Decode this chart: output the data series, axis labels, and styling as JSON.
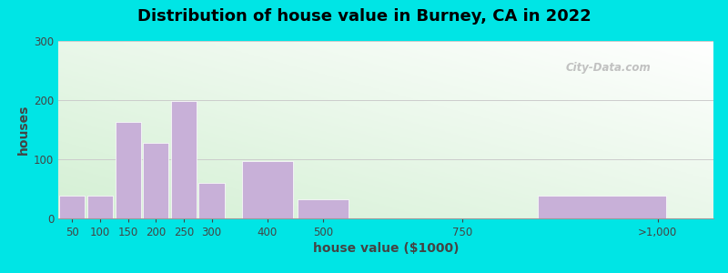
{
  "title": "Distribution of house value in Burney, CA in 2022",
  "xlabel": "house value ($1000)",
  "ylabel": "houses",
  "bar_lefts": [
    25,
    75,
    125,
    175,
    225,
    275,
    350,
    450,
    600,
    875
  ],
  "bar_widths": [
    50,
    50,
    50,
    50,
    50,
    50,
    100,
    100,
    200,
    250
  ],
  "bar_heights": [
    38,
    38,
    163,
    128,
    198,
    60,
    97,
    33,
    0,
    38
  ],
  "xtick_positions": [
    50,
    100,
    150,
    200,
    250,
    300,
    400,
    500,
    750,
    1100
  ],
  "xtick_labels": [
    "50",
    "100",
    "150",
    "200",
    "250",
    "300",
    "400",
    "500",
    "750",
    ">1,000"
  ],
  "bar_color": "#c8b0d8",
  "ylim": [
    0,
    300
  ],
  "xlim": [
    25,
    1200
  ],
  "yticks": [
    0,
    100,
    200,
    300
  ],
  "background_outer": "#00e5e5",
  "title_fontsize": 13,
  "axis_label_fontsize": 10,
  "watermark_text": "City-Data.com"
}
